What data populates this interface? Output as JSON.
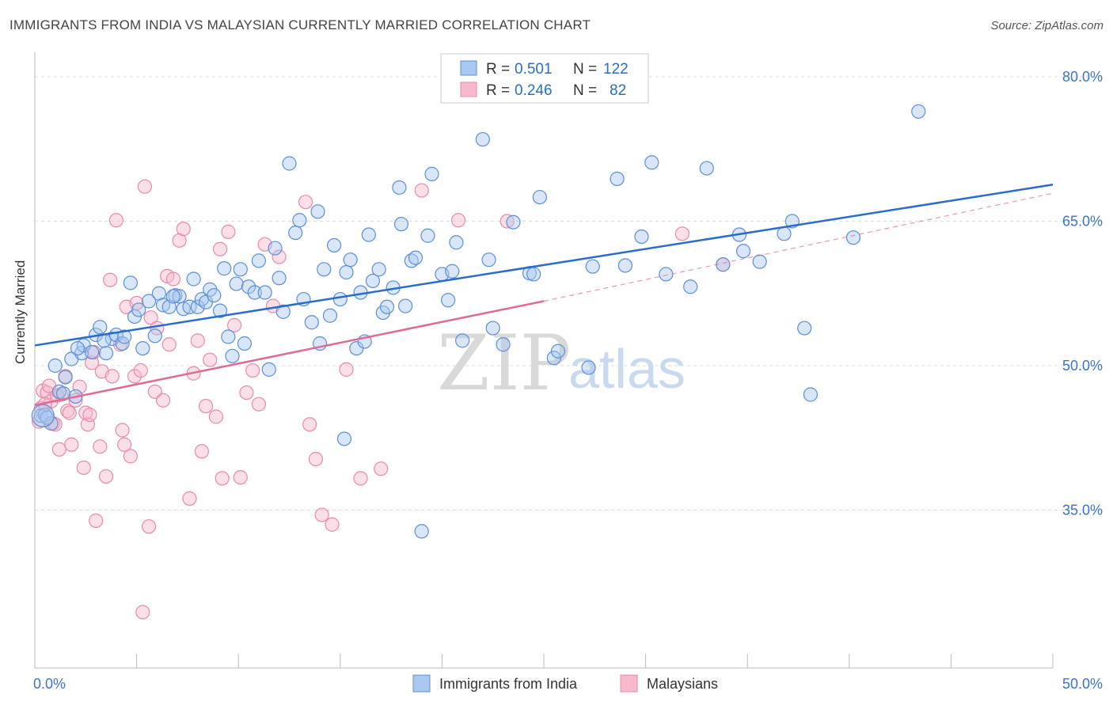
{
  "title": "IMMIGRANTS FROM INDIA VS MALAYSIAN CURRENTLY MARRIED CORRELATION CHART",
  "source": "Source: ZipAtlas.com",
  "watermark": {
    "zip": "ZIP",
    "atlas": "atlas"
  },
  "legend_box": {
    "rows": [
      {
        "r_label": "R =",
        "r_value": "0.501",
        "n_label": "N =",
        "n_value": "122"
      },
      {
        "r_label": "R =",
        "r_value": "0.246",
        "n_label": "N =",
        "n_value": "82"
      }
    ]
  },
  "bottom_legend": [
    "Immigrants from India",
    "Malaysians"
  ],
  "colors": {
    "blue_fill": "#a9c8f0",
    "blue_stroke": "#5b8fd6",
    "blue_line": "#2a6ccc",
    "pink_fill": "#f6b9cc",
    "pink_stroke": "#e88aa8",
    "pink_line": "#e06a92",
    "grid": "#dddddd",
    "axis_label": "#3a73c8"
  },
  "chart_data": {
    "type": "scatter",
    "title": "IMMIGRANTS FROM INDIA VS MALAYSIAN CURRENTLY MARRIED CORRELATION CHART",
    "xlabel": "",
    "ylabel": "Currently Married",
    "xlim": [
      0,
      50
    ],
    "ylim": [
      20,
      82
    ],
    "x_tick_labels": [
      "0.0%",
      "50.0%"
    ],
    "y_ticks": [
      35,
      50,
      65,
      80
    ],
    "y_tick_labels": [
      "35.0%",
      "50.0%",
      "65.0%",
      "80.0%"
    ],
    "series": [
      {
        "name": "Immigrants from India",
        "R": 0.501,
        "N": 122,
        "trend": {
          "x": [
            0,
            50
          ],
          "y": [
            52.1,
            68.8
          ],
          "style": "solid"
        },
        "points": [
          [
            0.3,
            44.8
          ],
          [
            0.5,
            44.9
          ],
          [
            0.8,
            44.0
          ],
          [
            1.0,
            50.0
          ],
          [
            1.2,
            47.3
          ],
          [
            1.5,
            48.8
          ],
          [
            1.8,
            50.7
          ],
          [
            2.0,
            46.8
          ],
          [
            2.3,
            51.3
          ],
          [
            2.4,
            52.1
          ],
          [
            2.8,
            51.4
          ],
          [
            3.0,
            53.2
          ],
          [
            3.2,
            54.0
          ],
          [
            3.5,
            51.3
          ],
          [
            3.8,
            52.8
          ],
          [
            4.0,
            53.2
          ],
          [
            4.3,
            52.3
          ],
          [
            4.7,
            58.6
          ],
          [
            4.9,
            55.1
          ],
          [
            5.1,
            55.8
          ],
          [
            5.3,
            51.8
          ],
          [
            5.6,
            56.7
          ],
          [
            5.9,
            53.1
          ],
          [
            6.1,
            57.5
          ],
          [
            6.3,
            56.3
          ],
          [
            6.6,
            56.1
          ],
          [
            6.9,
            57.3
          ],
          [
            7.1,
            57.2
          ],
          [
            7.3,
            55.9
          ],
          [
            7.6,
            56.1
          ],
          [
            7.8,
            59.0
          ],
          [
            8.0,
            56.1
          ],
          [
            8.2,
            56.9
          ],
          [
            8.4,
            56.6
          ],
          [
            8.6,
            57.9
          ],
          [
            8.8,
            57.3
          ],
          [
            9.1,
            55.7
          ],
          [
            9.3,
            60.1
          ],
          [
            9.5,
            53.0
          ],
          [
            9.7,
            51.0
          ],
          [
            9.9,
            58.5
          ],
          [
            10.1,
            60.0
          ],
          [
            10.3,
            52.3
          ],
          [
            10.5,
            58.2
          ],
          [
            10.8,
            57.6
          ],
          [
            11.0,
            60.9
          ],
          [
            11.3,
            57.6
          ],
          [
            11.5,
            49.6
          ],
          [
            11.8,
            62.2
          ],
          [
            12.0,
            59.1
          ],
          [
            12.2,
            55.6
          ],
          [
            12.5,
            71.0
          ],
          [
            12.8,
            63.8
          ],
          [
            13.0,
            65.1
          ],
          [
            13.2,
            56.9
          ],
          [
            13.6,
            54.5
          ],
          [
            13.9,
            66.0
          ],
          [
            14.0,
            52.3
          ],
          [
            14.2,
            60.0
          ],
          [
            14.5,
            55.2
          ],
          [
            14.7,
            62.5
          ],
          [
            15.0,
            56.9
          ],
          [
            15.2,
            42.4
          ],
          [
            15.3,
            59.7
          ],
          [
            15.5,
            61.0
          ],
          [
            15.8,
            51.8
          ],
          [
            16.0,
            57.6
          ],
          [
            16.2,
            52.5
          ],
          [
            16.4,
            63.6
          ],
          [
            16.6,
            58.8
          ],
          [
            16.9,
            60.0
          ],
          [
            17.1,
            55.5
          ],
          [
            17.3,
            56.1
          ],
          [
            17.6,
            58.1
          ],
          [
            17.9,
            68.5
          ],
          [
            18.0,
            64.7
          ],
          [
            18.2,
            56.2
          ],
          [
            18.5,
            60.9
          ],
          [
            18.7,
            61.2
          ],
          [
            19.0,
            32.8
          ],
          [
            19.3,
            63.5
          ],
          [
            19.5,
            69.9
          ],
          [
            20.0,
            59.5
          ],
          [
            20.3,
            56.8
          ],
          [
            20.5,
            59.8
          ],
          [
            20.7,
            62.8
          ],
          [
            21.0,
            52.6
          ],
          [
            22.0,
            73.5
          ],
          [
            22.3,
            61.0
          ],
          [
            22.5,
            53.9
          ],
          [
            23.0,
            52.2
          ],
          [
            23.5,
            64.9
          ],
          [
            24.3,
            59.6
          ],
          [
            24.5,
            59.5
          ],
          [
            24.8,
            67.5
          ],
          [
            25.5,
            50.8
          ],
          [
            25.7,
            51.5
          ],
          [
            27.2,
            49.8
          ],
          [
            27.4,
            60.3
          ],
          [
            28.6,
            69.4
          ],
          [
            29.0,
            60.4
          ],
          [
            29.8,
            63.4
          ],
          [
            30.3,
            71.1
          ],
          [
            31.0,
            59.5
          ],
          [
            32.2,
            58.2
          ],
          [
            33.0,
            70.5
          ],
          [
            33.8,
            60.5
          ],
          [
            34.6,
            63.6
          ],
          [
            34.8,
            61.9
          ],
          [
            35.6,
            60.8
          ],
          [
            36.8,
            63.7
          ],
          [
            37.2,
            65.0
          ],
          [
            37.8,
            53.9
          ],
          [
            38.1,
            47.0
          ],
          [
            40.2,
            63.3
          ],
          [
            43.4,
            76.4
          ],
          [
            0.6,
            44.6
          ],
          [
            1.4,
            47.1
          ],
          [
            2.1,
            51.8
          ],
          [
            3.4,
            52.6
          ],
          [
            4.4,
            53.0
          ],
          [
            6.8,
            57.2
          ]
        ]
      },
      {
        "name": "Malaysians",
        "R": 0.246,
        "N": 82,
        "trend": {
          "x": [
            0,
            25
          ],
          "y": [
            45.9,
            56.7
          ],
          "style": "solid"
        },
        "trend_ext": {
          "x": [
            25,
            50
          ],
          "y": [
            56.7,
            67.9
          ],
          "style": "dashed"
        },
        "points": [
          [
            0.2,
            44.2
          ],
          [
            0.3,
            45.6
          ],
          [
            0.4,
            47.4
          ],
          [
            0.6,
            47.2
          ],
          [
            0.7,
            47.9
          ],
          [
            0.8,
            46.3
          ],
          [
            0.9,
            44.0
          ],
          [
            1.0,
            43.9
          ],
          [
            1.2,
            41.3
          ],
          [
            1.3,
            47.0
          ],
          [
            1.5,
            48.9
          ],
          [
            1.6,
            45.3
          ],
          [
            1.7,
            45.1
          ],
          [
            1.8,
            41.8
          ],
          [
            2.0,
            46.4
          ],
          [
            2.2,
            47.8
          ],
          [
            2.4,
            39.4
          ],
          [
            2.5,
            45.1
          ],
          [
            2.6,
            43.9
          ],
          [
            2.8,
            50.3
          ],
          [
            2.9,
            51.4
          ],
          [
            3.0,
            33.9
          ],
          [
            3.2,
            41.6
          ],
          [
            3.3,
            49.4
          ],
          [
            3.5,
            38.5
          ],
          [
            3.7,
            58.9
          ],
          [
            3.8,
            48.9
          ],
          [
            4.0,
            65.1
          ],
          [
            4.2,
            52.2
          ],
          [
            4.4,
            41.8
          ],
          [
            4.5,
            56.1
          ],
          [
            4.7,
            40.6
          ],
          [
            4.9,
            48.9
          ],
          [
            5.0,
            56.5
          ],
          [
            5.2,
            49.5
          ],
          [
            5.4,
            68.6
          ],
          [
            5.6,
            33.3
          ],
          [
            5.7,
            55.0
          ],
          [
            5.9,
            47.3
          ],
          [
            6.0,
            53.9
          ],
          [
            6.3,
            46.4
          ],
          [
            6.5,
            59.3
          ],
          [
            6.8,
            59.0
          ],
          [
            7.1,
            63.0
          ],
          [
            7.3,
            64.2
          ],
          [
            7.6,
            36.2
          ],
          [
            7.8,
            49.2
          ],
          [
            8.0,
            52.6
          ],
          [
            8.2,
            41.1
          ],
          [
            8.4,
            45.8
          ],
          [
            8.6,
            50.6
          ],
          [
            8.9,
            44.7
          ],
          [
            9.2,
            38.3
          ],
          [
            9.5,
            63.9
          ],
          [
            9.8,
            54.2
          ],
          [
            10.1,
            38.4
          ],
          [
            10.4,
            47.2
          ],
          [
            10.7,
            49.5
          ],
          [
            11.0,
            46.0
          ],
          [
            11.3,
            62.6
          ],
          [
            11.7,
            56.2
          ],
          [
            12.0,
            61.3
          ],
          [
            13.3,
            67.0
          ],
          [
            13.5,
            43.9
          ],
          [
            13.8,
            40.3
          ],
          [
            14.1,
            34.5
          ],
          [
            14.6,
            33.5
          ],
          [
            15.3,
            49.6
          ],
          [
            16.0,
            38.3
          ],
          [
            17.0,
            39.3
          ],
          [
            19.0,
            68.2
          ],
          [
            20.8,
            65.1
          ],
          [
            23.2,
            65.0
          ],
          [
            31.8,
            63.7
          ],
          [
            33.8,
            60.5
          ],
          [
            0.5,
            46.0
          ],
          [
            1.1,
            46.9
          ],
          [
            2.7,
            44.9
          ],
          [
            4.3,
            43.3
          ],
          [
            5.3,
            24.4
          ],
          [
            6.6,
            52.2
          ],
          [
            9.1,
            62.1
          ]
        ]
      }
    ]
  }
}
